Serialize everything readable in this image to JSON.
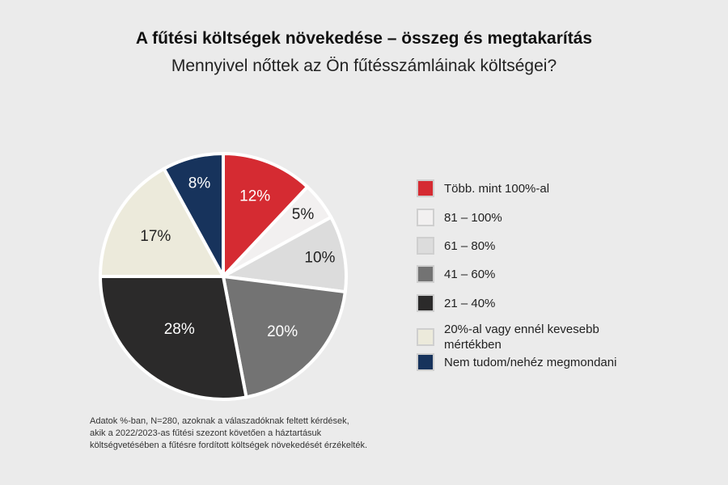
{
  "header": {
    "title": "A fűtési költségek növekedése – összeg és megtakarítás",
    "subtitle": "Mennyivel nőttek az Ön fűtésszámláinak költségei?"
  },
  "chart_data": {
    "type": "pie",
    "title": "A fűtési költségek növekedése – összeg és megtakarítás",
    "subtitle": "Mennyivel nőttek az Ön fűtésszámláinak költségei?",
    "categories": [
      "Több. mint 100%-al",
      "81 – 100%",
      "61 – 80%",
      "41 – 60%",
      "21 – 40%",
      "20%-al vagy ennél kevesebb mértékben",
      "Nem tudom/nehéz megmondani"
    ],
    "values": [
      12,
      5,
      10,
      20,
      28,
      17,
      8
    ],
    "value_labels": [
      "12%",
      "5%",
      "10%",
      "20%",
      "28%",
      "17%",
      "8%"
    ],
    "colors": [
      "#d52b32",
      "#f2f0f0",
      "#dcdcdc",
      "#737373",
      "#2b2a2a",
      "#eceadb",
      "#17335c"
    ],
    "label_colors": [
      "#ffffff",
      "#222222",
      "#222222",
      "#ffffff",
      "#ffffff",
      "#222222",
      "#ffffff"
    ],
    "start_angle_deg": 0,
    "direction": "clockwise",
    "legend_position": "right"
  },
  "legend": {
    "items": [
      {
        "label": "Több. mint 100%-al",
        "color": "#d52b32"
      },
      {
        "label": "81 – 100%",
        "color": "#f2f0f0"
      },
      {
        "label": "61 – 80%",
        "color": "#dcdcdc"
      },
      {
        "label": "41 – 60%",
        "color": "#737373"
      },
      {
        "label": "21 – 40%",
        "color": "#2b2a2a"
      },
      {
        "label": "20%-al vagy ennél kevesebb mértékben",
        "color": "#eceadb"
      },
      {
        "label": "Nem tudom/nehéz megmondani",
        "color": "#17335c"
      }
    ]
  },
  "footnote": {
    "line1": "Adatok %-ban, N=280, azoknak a válaszadóknak feltett kérdések,",
    "line2": "akik a 2022/2023-as fűtési szezont követően a háztartásuk",
    "line3": "költségvetésében a fűtésre fordított költségek növekedését érzékelték."
  }
}
